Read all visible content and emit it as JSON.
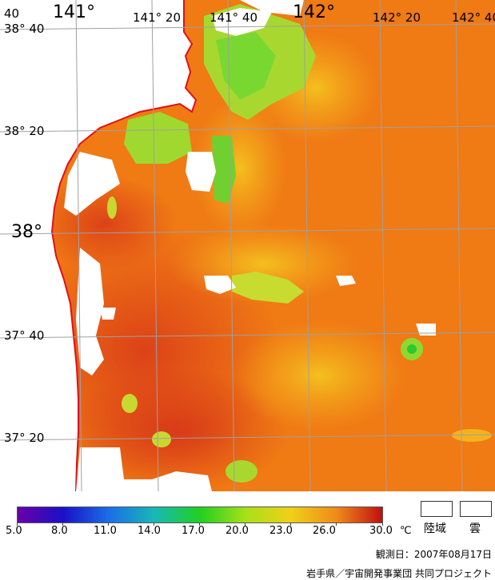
{
  "map": {
    "lon_labels": [
      "141°",
      "141° 20",
      "141° 40",
      "142°",
      "142° 20",
      "142° 40",
      "40"
    ],
    "lat_labels": [
      "38° 40",
      "38° 20",
      "38°",
      "37° 40",
      "37° 20"
    ],
    "colors": {
      "warm": "#f07a14",
      "hot": "#e04a1a",
      "mid": "#f59a1c",
      "yellow": "#f2c41c",
      "green": "#8fe030",
      "land": "#ffffff",
      "coast": "#e0101a",
      "grid": "#a0a0a0"
    }
  },
  "legend": {
    "scale_ticks": [
      "5.0",
      "8.0",
      "11.0",
      "14.0",
      "17.0",
      "20.0",
      "23.0",
      "26.0",
      "30.0"
    ],
    "unit": "℃",
    "land_label": "陸域",
    "cloud_label": "雲",
    "gradient_stops": [
      "#6a00a8",
      "#1a10c8",
      "#1a6ee8",
      "#18b8b8",
      "#20d020",
      "#a8e018",
      "#f0d018",
      "#f08a18",
      "#c01010"
    ]
  },
  "footer": {
    "observed": "観測日：2007年08月17日",
    "credit": "岩手県／宇宙開発事業団  共同プロジェクト"
  }
}
